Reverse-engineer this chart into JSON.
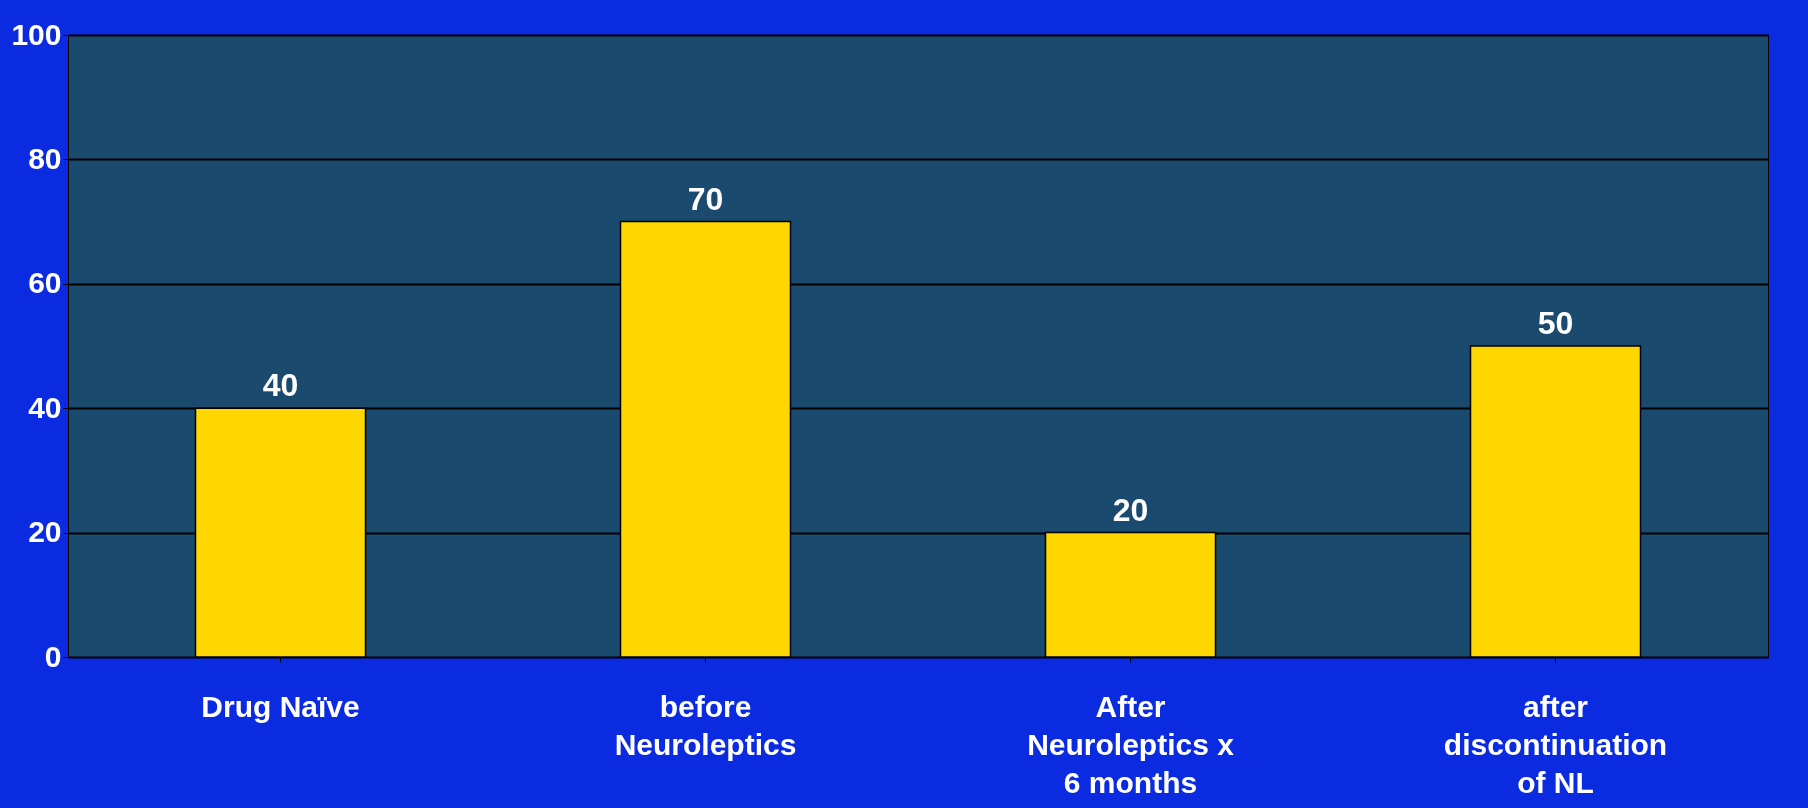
{
  "chart_data": {
    "type": "bar",
    "categories": [
      "Drug Naïve",
      "before\nNeuroleptics",
      "After\nNeuroleptics x\n6 months",
      "after\ndiscontinuation\nof NL"
    ],
    "values": [
      40,
      70,
      20,
      50
    ],
    "color": "#ffd700",
    "ylim": [
      0,
      100
    ],
    "yticks": [
      0,
      20,
      40,
      60,
      80,
      100
    ],
    "grid": "y",
    "data_labels": true
  }
}
